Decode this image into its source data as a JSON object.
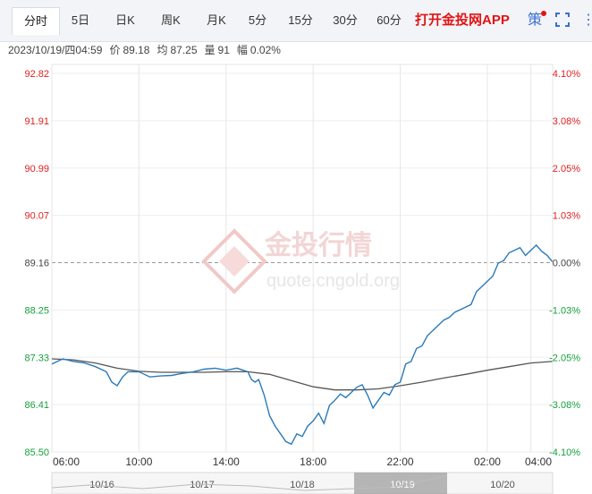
{
  "tabs": [
    "分时",
    "5日",
    "日K",
    "周K",
    "月K",
    "5分",
    "15分",
    "30分",
    "60分"
  ],
  "active_tab": 0,
  "promo_label": "打开金投网APP",
  "strategy_label": "策",
  "more_label": "⋮",
  "info": {
    "datetime": "2023/10/19/四04:59",
    "price_label": "价",
    "price": "89.18",
    "avg_label": "均",
    "avg": "87.25",
    "vol_label": "量",
    "vol": "91",
    "amp_label": "幅",
    "amp": "0.02%"
  },
  "watermark": {
    "brand": "金投行情",
    "url": "quote.cngold.org"
  },
  "colors": {
    "up": "#e02020",
    "down": "#16a03c",
    "base": "#444444",
    "price_line": "#2a7ab8",
    "avg_line": "#555555"
  },
  "chart_data": {
    "type": "line",
    "title": "",
    "y_left_labels": [
      "92.82",
      "91.91",
      "90.99",
      "90.07",
      "89.16",
      "88.25",
      "87.33",
      "86.41",
      "85.50"
    ],
    "y_right_labels": [
      "4.10%",
      "3.08%",
      "2.05%",
      "1.03%",
      "0.00%",
      "-1.03%",
      "-2.05%",
      "-3.08%",
      "-4.10%"
    ],
    "ylim": [
      85.5,
      92.82
    ],
    "base_price": 89.16,
    "x_labels": [
      "06:00",
      "10:00",
      "14:00",
      "18:00",
      "22:00",
      "02:00",
      "04:00"
    ],
    "nav_dates": [
      "10/16",
      "10/17",
      "10/18",
      "10/19",
      "10/20"
    ],
    "series": [
      {
        "name": "price",
        "x": [
          "06:00",
          "06:30",
          "07:00",
          "07:30",
          "08:00",
          "08:30",
          "08:45",
          "09:00",
          "09:15",
          "09:30",
          "10:00",
          "10:30",
          "11:00",
          "11:30",
          "12:00",
          "12:30",
          "13:00",
          "13:30",
          "14:00",
          "14:30",
          "15:00",
          "15:10",
          "15:20",
          "15:30",
          "15:45",
          "16:00",
          "16:15",
          "16:30",
          "16:45",
          "17:00",
          "17:15",
          "17:30",
          "17:45",
          "18:00",
          "18:15",
          "18:30",
          "18:45",
          "19:00",
          "19:15",
          "19:30",
          "19:45",
          "20:00",
          "20:15",
          "20:30",
          "20:45",
          "21:00",
          "21:15",
          "21:30",
          "21:45",
          "22:00",
          "22:15",
          "22:30",
          "22:45",
          "23:00",
          "23:15",
          "23:30",
          "23:45",
          "00:00",
          "00:15",
          "00:30",
          "00:45",
          "01:00",
          "01:15",
          "01:30",
          "01:45",
          "02:00",
          "02:15",
          "02:30",
          "02:45",
          "03:00",
          "03:15",
          "03:30",
          "03:45",
          "04:00",
          "04:15",
          "04:30",
          "04:45",
          "04:59"
        ],
        "values": [
          87.2,
          87.3,
          87.25,
          87.22,
          87.15,
          87.05,
          86.85,
          86.78,
          86.95,
          87.05,
          87.05,
          86.95,
          86.97,
          86.98,
          87.02,
          87.05,
          87.1,
          87.12,
          87.08,
          87.12,
          87.05,
          86.9,
          86.85,
          86.9,
          86.6,
          86.2,
          86.0,
          85.85,
          85.7,
          85.65,
          85.85,
          85.8,
          86.0,
          86.1,
          86.25,
          86.05,
          86.4,
          86.5,
          86.62,
          86.55,
          86.65,
          86.75,
          86.8,
          86.6,
          86.35,
          86.5,
          86.65,
          86.6,
          86.8,
          86.85,
          87.2,
          87.25,
          87.5,
          87.55,
          87.75,
          87.85,
          87.95,
          88.05,
          88.1,
          88.2,
          88.25,
          88.3,
          88.35,
          88.6,
          88.7,
          88.8,
          88.9,
          89.15,
          89.2,
          89.35,
          89.4,
          89.45,
          89.3,
          89.4,
          89.5,
          89.38,
          89.3,
          89.18
        ]
      },
      {
        "name": "average",
        "x": [
          "06:00",
          "07:00",
          "08:00",
          "09:00",
          "10:00",
          "11:00",
          "12:00",
          "13:00",
          "14:00",
          "15:00",
          "16:00",
          "17:00",
          "18:00",
          "19:00",
          "20:00",
          "21:00",
          "22:00",
          "23:00",
          "00:00",
          "01:00",
          "02:00",
          "03:00",
          "04:00",
          "04:59"
        ],
        "values": [
          87.3,
          87.28,
          87.22,
          87.12,
          87.06,
          87.04,
          87.04,
          87.04,
          87.05,
          87.05,
          87.0,
          86.88,
          86.76,
          86.7,
          86.7,
          86.72,
          86.78,
          86.85,
          86.93,
          87.0,
          87.08,
          87.15,
          87.22,
          87.25
        ]
      }
    ],
    "grid": true
  }
}
